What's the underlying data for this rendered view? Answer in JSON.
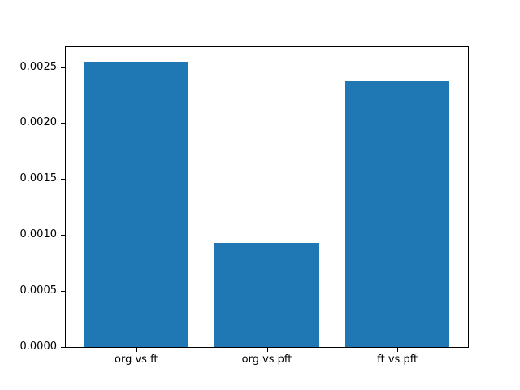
{
  "figure": {
    "background": "#ffffff",
    "spine_color": "#000000",
    "text_color": "#000000"
  },
  "chart_data": {
    "type": "bar",
    "title": "",
    "xlabel": "",
    "ylabel": "",
    "categories": [
      "org vs ft",
      "org vs pft",
      "ft vs pft"
    ],
    "values": [
      0.00255,
      0.00093,
      0.00237
    ],
    "bar_color": "#1f77b4",
    "bar_width": 0.8,
    "xlim": [
      -0.54,
      2.54
    ],
    "ylim": [
      0,
      0.002678
    ],
    "yticks": [
      0.0,
      0.0005,
      0.001,
      0.0015,
      0.002,
      0.0025
    ],
    "ytick_labels": [
      "0.0000",
      "0.0005",
      "0.0010",
      "0.0015",
      "0.0020",
      "0.0025"
    ],
    "grid": false,
    "legend": null
  }
}
